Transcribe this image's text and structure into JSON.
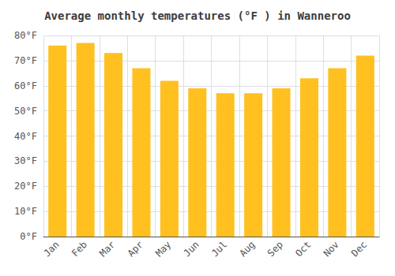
{
  "chart_data": {
    "type": "bar",
    "title": "Average monthly temperatures (°F ) in Wanneroo",
    "categories": [
      "Jan",
      "Feb",
      "Mar",
      "Apr",
      "May",
      "Jun",
      "Jul",
      "Aug",
      "Sep",
      "Oct",
      "Nov",
      "Dec"
    ],
    "values": [
      76,
      77,
      73,
      67,
      62,
      59,
      57,
      57,
      59,
      63,
      67,
      72
    ],
    "color": "#FFC020",
    "ylim": [
      0,
      80
    ],
    "yticks": [
      {
        "value": 0,
        "label": "0°F"
      },
      {
        "value": 10,
        "label": "10°F"
      },
      {
        "value": 20,
        "label": "20°F"
      },
      {
        "value": 30,
        "label": "30°F"
      },
      {
        "value": 40,
        "label": "40°F"
      },
      {
        "value": 50,
        "label": "50°F"
      },
      {
        "value": 60,
        "label": "60°F"
      },
      {
        "value": 70,
        "label": "70°F"
      },
      {
        "value": 80,
        "label": "80°F"
      }
    ],
    "grid": true
  }
}
